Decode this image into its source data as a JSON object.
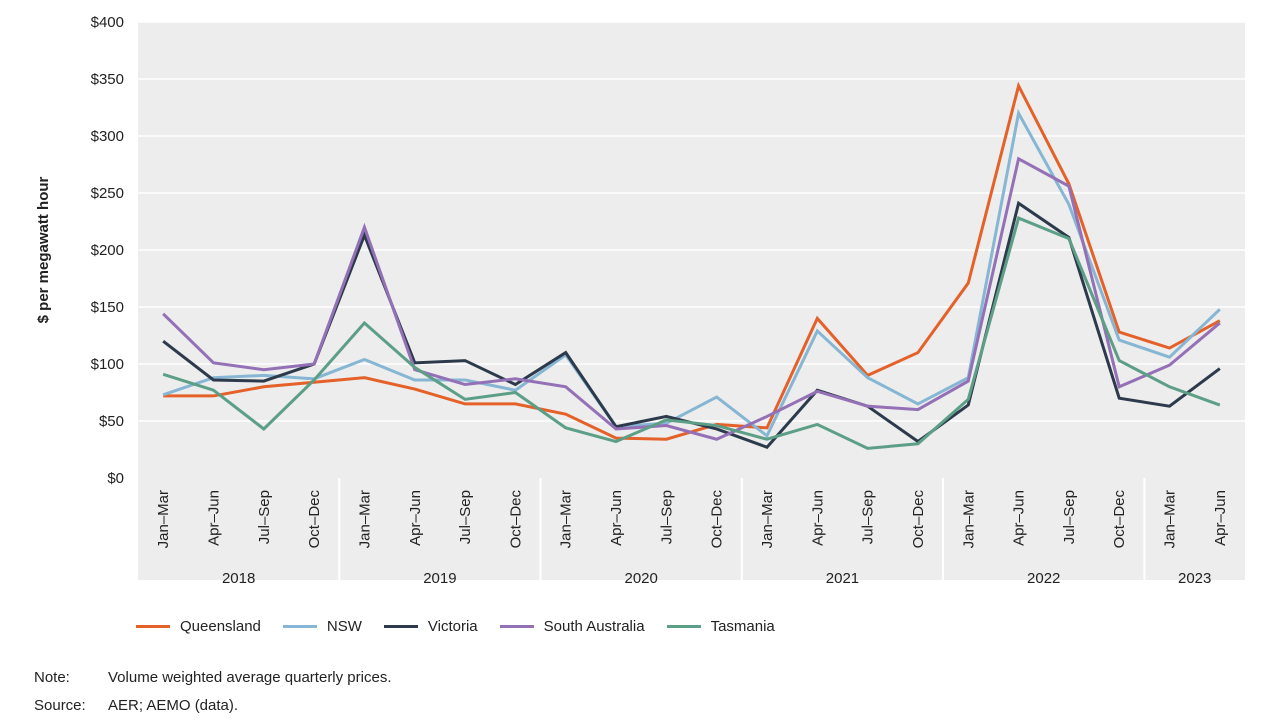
{
  "chart_data": {
    "type": "line",
    "ylabel": "$ per megawatt hour",
    "ylim": [
      0,
      400
    ],
    "yticks": [
      "$0",
      "$50",
      "$100",
      "$150",
      "$200",
      "$250",
      "$300",
      "$350",
      "$400"
    ],
    "ytick_values": [
      0,
      50,
      100,
      150,
      200,
      250,
      300,
      350,
      400
    ],
    "grid": true,
    "legend_position": "bottom",
    "categories": [
      "Jan–Mar",
      "Apr–Jun",
      "Jul–Sep",
      "Oct–Dec",
      "Jan–Mar",
      "Apr–Jun",
      "Jul–Sep",
      "Oct–Dec",
      "Jan–Mar",
      "Apr–Jun",
      "Jul–Sep",
      "Oct–Dec",
      "Jan–Mar",
      "Apr–Jun",
      "Jul–Sep",
      "Oct–Dec",
      "Jan–Mar",
      "Apr–Jun",
      "Jul–Sep",
      "Oct–Dec",
      "Jan–Mar",
      "Apr–Jun"
    ],
    "years": [
      {
        "label": "2018",
        "count": 4
      },
      {
        "label": "2019",
        "count": 4
      },
      {
        "label": "2020",
        "count": 4
      },
      {
        "label": "2021",
        "count": 4
      },
      {
        "label": "2022",
        "count": 4
      },
      {
        "label": "2023",
        "count": 2
      }
    ],
    "series": [
      {
        "name": "Queensland",
        "color": "#e4612a",
        "values": [
          72,
          72,
          80,
          84,
          88,
          78,
          65,
          65,
          56,
          35,
          34,
          47,
          44,
          140,
          90,
          110,
          171,
          344,
          258,
          128,
          114,
          138
        ]
      },
      {
        "name": "NSW",
        "color": "#86b6d3",
        "values": [
          73,
          88,
          90,
          87,
          104,
          86,
          86,
          77,
          108,
          45,
          48,
          71,
          37,
          129,
          88,
          65,
          88,
          320,
          240,
          121,
          106,
          148
        ]
      },
      {
        "name": "Victoria",
        "color": "#2c3a4c",
        "values": [
          120,
          86,
          85,
          100,
          213,
          101,
          103,
          82,
          110,
          45,
          54,
          43,
          27,
          77,
          63,
          32,
          64,
          241,
          211,
          70,
          63,
          96
        ]
      },
      {
        "name": "South Australia",
        "color": "#9470b6",
        "values": [
          144,
          101,
          95,
          100,
          220,
          95,
          82,
          87,
          80,
          43,
          46,
          34,
          54,
          76,
          63,
          60,
          85,
          280,
          256,
          80,
          99,
          136
        ]
      },
      {
        "name": "Tasmania",
        "color": "#5c9e86",
        "values": [
          91,
          77,
          43,
          86,
          136,
          97,
          69,
          75,
          44,
          32,
          51,
          46,
          34,
          47,
          26,
          30,
          69,
          228,
          210,
          103,
          80,
          64
        ]
      }
    ]
  },
  "notes": {
    "note_label": "Note:",
    "note_text": "Volume weighted average quarterly prices.",
    "source_label": "Source:",
    "source_text": "AER; AEMO (data)."
  }
}
